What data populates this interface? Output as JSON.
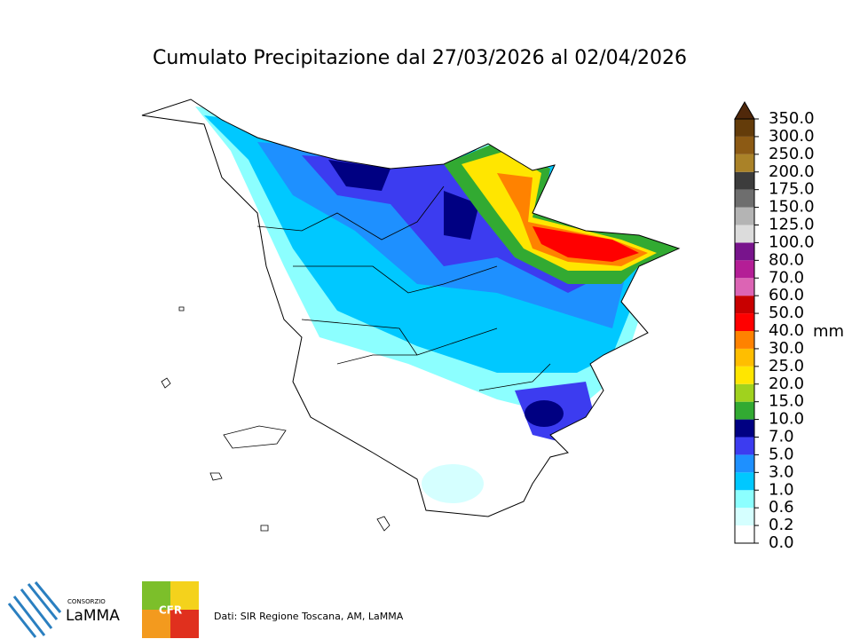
{
  "title": "Cumulato Precipitazione dal 27/03/2026 al 02/04/2026",
  "colorbar": {
    "unit": "mm",
    "ticks": [
      {
        "value": 0,
        "label": "0.0"
      },
      {
        "value": 0.2,
        "label": "0.2"
      },
      {
        "value": 0.6,
        "label": "0.6"
      },
      {
        "value": 1,
        "label": "1.0"
      },
      {
        "value": 3,
        "label": "3.0"
      },
      {
        "value": 5,
        "label": "5.0"
      },
      {
        "value": 7,
        "label": "7.0"
      },
      {
        "value": 10,
        "label": "10.0"
      },
      {
        "value": 15,
        "label": "15.0"
      },
      {
        "value": 20,
        "label": "20.0"
      },
      {
        "value": 25,
        "label": "25.0"
      },
      {
        "value": 30,
        "label": "30.0"
      },
      {
        "value": 40,
        "label": "40.0"
      },
      {
        "value": 50,
        "label": "50.0"
      },
      {
        "value": 60,
        "label": "60.0"
      },
      {
        "value": 70,
        "label": "70.0"
      },
      {
        "value": 80,
        "label": "80.0"
      },
      {
        "value": 100,
        "label": "100.0"
      },
      {
        "value": 125,
        "label": "125.0"
      },
      {
        "value": 150,
        "label": "150.0"
      },
      {
        "value": 175,
        "label": "175.0"
      },
      {
        "value": 200,
        "label": "200.0"
      },
      {
        "value": 250,
        "label": "250.0"
      },
      {
        "value": 300,
        "label": "300.0"
      },
      {
        "value": 350,
        "label": "350.0"
      }
    ],
    "colors": [
      "#ffffff",
      "#d5ffff",
      "#8cffff",
      "#00c8ff",
      "#1e90ff",
      "#3c3cf0",
      "#000082",
      "#32aa32",
      "#a0d21e",
      "#ffe600",
      "#ffbe00",
      "#ff8200",
      "#ff0000",
      "#c80000",
      "#dc64b4",
      "#b41e96",
      "#78148c",
      "#dcdcdc",
      "#b4b4b4",
      "#6e6e6e",
      "#3c3c3c",
      "#aa8228",
      "#8c5a14",
      "#643c0a"
    ],
    "extend_color": "#50280a"
  },
  "footer": {
    "source": "Dati: SIR Regione Toscana, AM, LaMMA",
    "lamma_small": "CONSORZIO",
    "lamma": "LaMMA",
    "cfr": "CFR"
  }
}
